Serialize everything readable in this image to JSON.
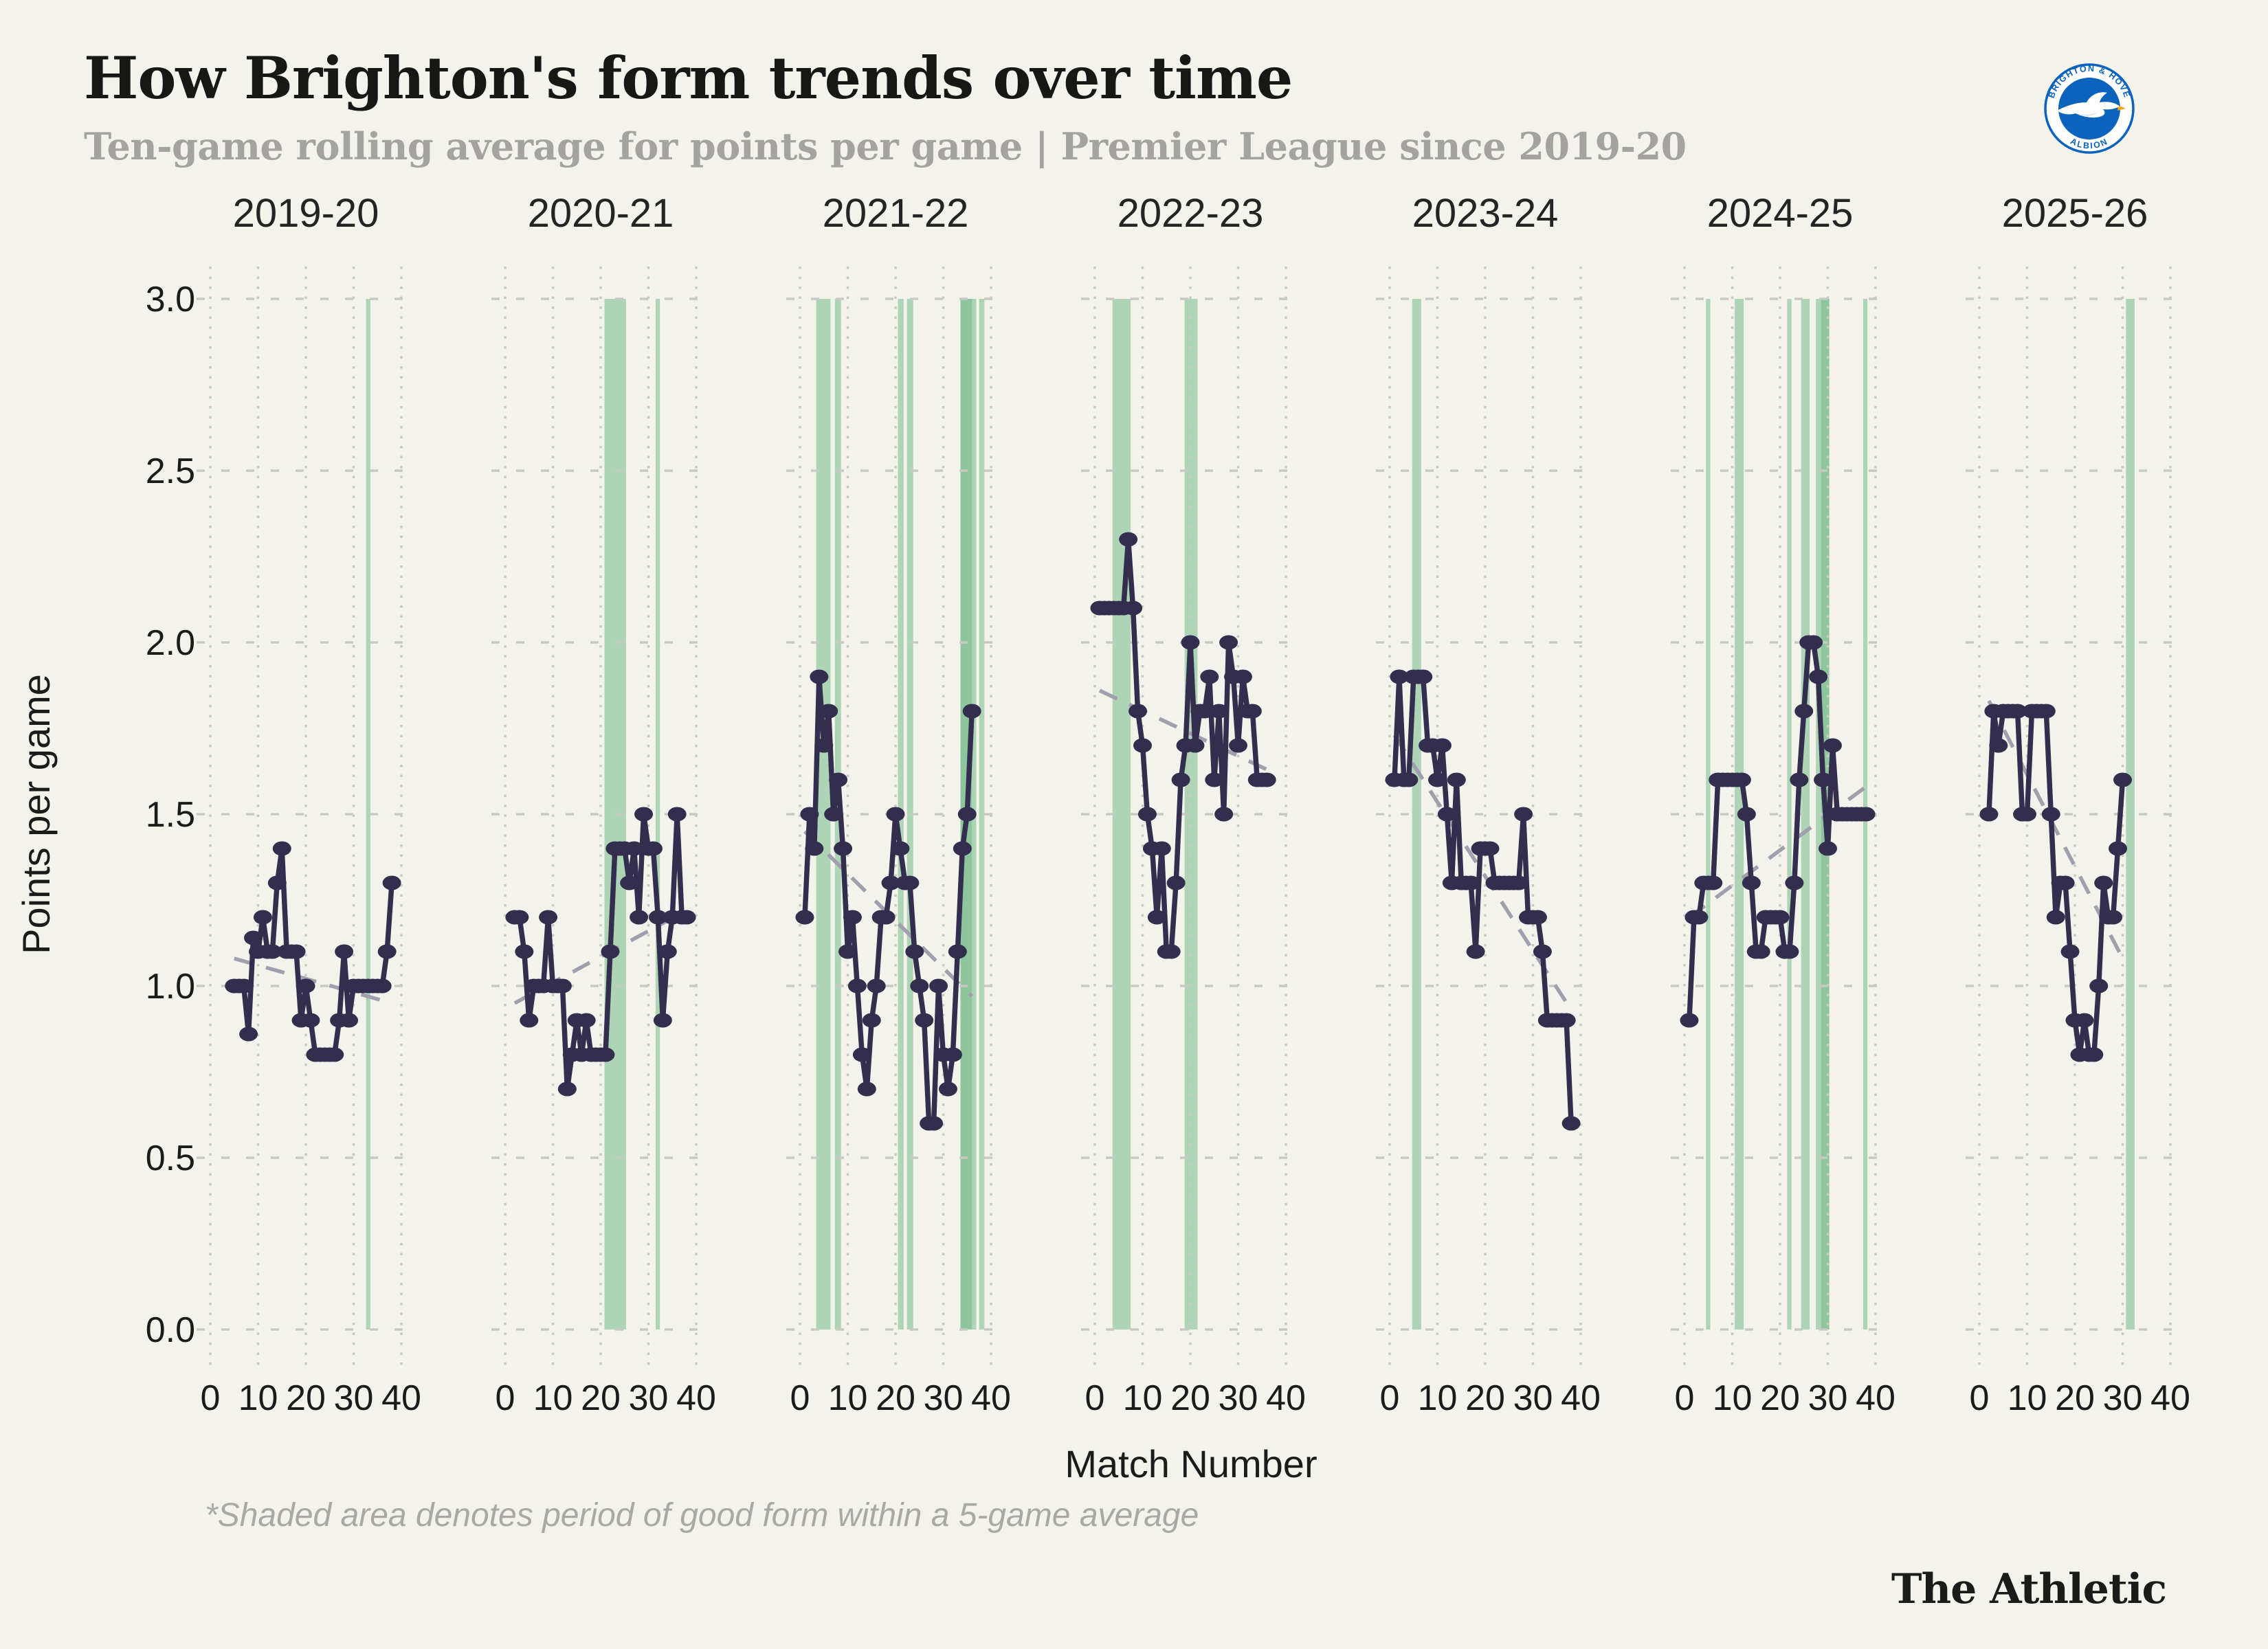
{
  "header": {
    "title": "How Brighton's form trends over time",
    "subtitle": "Ten-game rolling average for points per game | Premier League since 2019-20"
  },
  "branding": {
    "wordmark": "The Athletic",
    "crest": {
      "top_text": "BRIGHTON & HOVE",
      "bottom_text": "ALBION",
      "blue": "#0b63bd",
      "beak_yellow": "#f0a818"
    }
  },
  "footnote": "*Shaded area denotes period of good form within a 5-game average",
  "chart_data": {
    "type": "line",
    "layout": "small-multiples-by-season",
    "title": "How Brighton's form trends over time",
    "xlabel": "Match Number",
    "ylabel": "Points per game",
    "ylim": [
      0.0,
      3.0
    ],
    "yticks": [
      "3.0",
      "2.5",
      "2.0",
      "1.5",
      "1.0",
      "0.5",
      "0.0"
    ],
    "xticks": [
      0,
      10,
      20,
      30,
      40
    ],
    "grid": "dotted",
    "legend": "none",
    "colors": {
      "background": "#f3f3ec",
      "line": "#332d4e",
      "marker": "#332d4e",
      "good_form_band": "#6fb985",
      "trend": "#a19fae",
      "grid": "#c9c9c3",
      "tick_text": "#1b1b19",
      "season_text": "#242422"
    },
    "panels": [
      {
        "season": "2019-20",
        "start_match": 5,
        "values": [
          1.0,
          1.0,
          1.0,
          0.86,
          1.14,
          1.1,
          1.2,
          1.1,
          1.1,
          1.3,
          1.4,
          1.1,
          1.1,
          1.1,
          0.9,
          1.0,
          0.9,
          0.8,
          0.8,
          0.8,
          0.8,
          0.8,
          0.9,
          1.1,
          0.9,
          1.0,
          1.0,
          1.0,
          1.0,
          1.0,
          1.0,
          1.0,
          1.1,
          1.3
        ],
        "trend": [
          [
            5,
            1.08
          ],
          [
            38,
            0.95
          ]
        ],
        "good_form_bands": [
          [
            32.6,
            33.5
          ]
        ]
      },
      {
        "season": "2020-21",
        "start_match": 2,
        "values": [
          1.2,
          1.2,
          1.1,
          0.9,
          1.0,
          1.0,
          1.0,
          1.2,
          1.0,
          1.0,
          1.0,
          0.7,
          0.8,
          0.9,
          0.8,
          0.9,
          0.8,
          0.8,
          0.8,
          0.8,
          1.1,
          1.4,
          1.4,
          1.4,
          1.3,
          1.4,
          1.2,
          1.5,
          1.4,
          1.4,
          1.2,
          0.9,
          1.1,
          1.2,
          1.5,
          1.2,
          1.2
        ],
        "trend": [
          [
            2,
            0.95
          ],
          [
            38,
            1.22
          ]
        ],
        "good_form_bands": [
          [
            20.8,
            25.3
          ],
          [
            31.5,
            32.4
          ]
        ]
      },
      {
        "season": "2021-22",
        "start_match": 1,
        "values": [
          1.2,
          1.5,
          1.4,
          1.9,
          1.7,
          1.8,
          1.5,
          1.6,
          1.4,
          1.1,
          1.2,
          1.0,
          0.8,
          0.7,
          0.9,
          1.0,
          1.2,
          1.2,
          1.3,
          1.5,
          1.4,
          1.3,
          1.3,
          1.1,
          1.0,
          0.9,
          0.6,
          0.6,
          1.0,
          0.8,
          0.7,
          0.8,
          1.1,
          1.4,
          1.5,
          1.8
        ],
        "trend": [
          [
            1,
            1.45
          ],
          [
            36,
            0.97
          ]
        ],
        "good_form_bands": [
          [
            3.4,
            6.4
          ],
          [
            7.3,
            8.6
          ],
          [
            20.5,
            21.7
          ],
          [
            22.4,
            23.7
          ],
          [
            33.6,
            36.9
          ],
          [
            33.6,
            36.0
          ],
          [
            37.5,
            38.6
          ]
        ]
      },
      {
        "season": "2022-23",
        "start_match": 1,
        "values": [
          2.1,
          2.1,
          2.1,
          2.1,
          2.1,
          2.1,
          2.3,
          2.1,
          1.8,
          1.7,
          1.5,
          1.4,
          1.2,
          1.4,
          1.1,
          1.1,
          1.3,
          1.6,
          1.7,
          2.0,
          1.7,
          1.8,
          1.8,
          1.9,
          1.6,
          1.8,
          1.5,
          2.0,
          1.9,
          1.7,
          1.9,
          1.8,
          1.8,
          1.6,
          1.6,
          1.6
        ],
        "trend": [
          [
            1,
            1.86
          ],
          [
            36,
            1.63
          ]
        ],
        "good_form_bands": [
          [
            3.7,
            7.5
          ],
          [
            18.8,
            21.5
          ]
        ]
      },
      {
        "season": "2023-24",
        "start_match": 1,
        "values": [
          1.6,
          1.9,
          1.6,
          1.6,
          1.9,
          1.9,
          1.9,
          1.7,
          1.7,
          1.6,
          1.7,
          1.5,
          1.3,
          1.6,
          1.3,
          1.3,
          1.3,
          1.1,
          1.4,
          1.4,
          1.4,
          1.3,
          1.3,
          1.3,
          1.3,
          1.3,
          1.3,
          1.5,
          1.2,
          1.2,
          1.2,
          1.1,
          0.9,
          0.9,
          0.9,
          0.9,
          0.9,
          0.6
        ],
        "trend": [
          [
            1,
            1.73
          ],
          [
            38,
            0.93
          ]
        ],
        "good_form_bands": [
          [
            4.7,
            6.6
          ]
        ]
      },
      {
        "season": "2024-25",
        "start_match": 1,
        "values": [
          0.9,
          1.2,
          1.2,
          1.3,
          1.3,
          1.3,
          1.6,
          1.6,
          1.6,
          1.6,
          1.6,
          1.6,
          1.5,
          1.3,
          1.1,
          1.1,
          1.2,
          1.2,
          1.2,
          1.2,
          1.1,
          1.1,
          1.3,
          1.6,
          1.8,
          2.0,
          2.0,
          1.9,
          1.6,
          1.4,
          1.7,
          1.5,
          1.5,
          1.5,
          1.5,
          1.5,
          1.5,
          1.5
        ],
        "trend": [
          [
            1,
            1.2
          ],
          [
            38,
            1.58
          ]
        ],
        "good_form_bands": [
          [
            4.5,
            5.4
          ],
          [
            10.5,
            12.4
          ],
          [
            21.5,
            22.4
          ],
          [
            24.4,
            26.2
          ],
          [
            27.5,
            30.3
          ],
          [
            28.6,
            30.3
          ],
          [
            37.4,
            38.3
          ]
        ]
      },
      {
        "season": "2025-26",
        "start_match": 2,
        "values": [
          1.5,
          1.8,
          1.7,
          1.8,
          1.8,
          1.8,
          1.8,
          1.5,
          1.5,
          1.8,
          1.8,
          1.8,
          1.8,
          1.5,
          1.2,
          1.3,
          1.3,
          1.1,
          0.9,
          0.8,
          0.9,
          0.8,
          0.8,
          1.0,
          1.3,
          1.2,
          1.2,
          1.4,
          1.6
        ],
        "trend": [
          [
            2,
            1.83
          ],
          [
            30,
            1.08
          ]
        ],
        "good_form_bands": [
          [
            30.7,
            32.5
          ]
        ]
      }
    ]
  }
}
